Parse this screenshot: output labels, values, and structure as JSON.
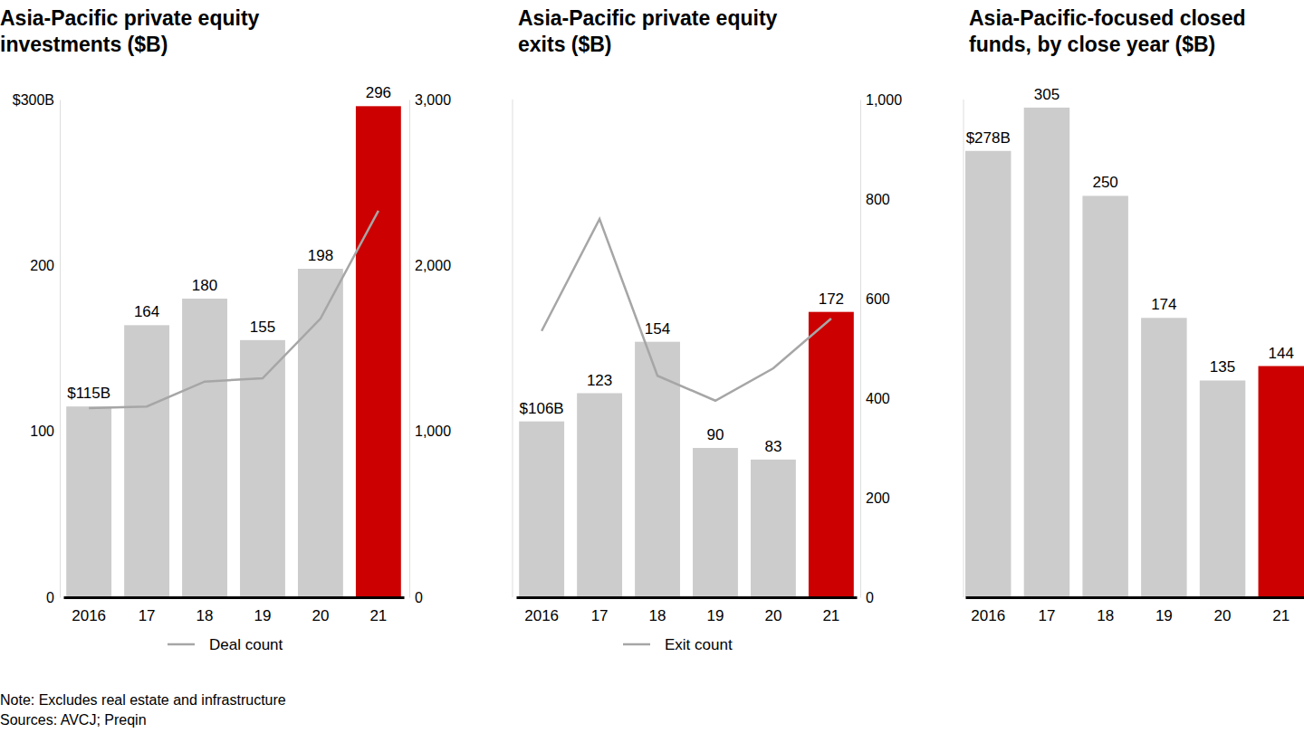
{
  "chart_data": [
    {
      "type": "bar",
      "title": [
        "Asia-Pacific private equity",
        "investments ($B)"
      ],
      "categories": [
        "2016",
        "17",
        "18",
        "19",
        "20",
        "21"
      ],
      "series": [
        {
          "type": "bar",
          "colors": [
            "#cccccc",
            "#cccccc",
            "#cccccc",
            "#cccccc",
            "#cccccc",
            "#cc0000"
          ],
          "values": [
            115,
            164,
            180,
            155,
            198,
            296
          ],
          "value_labels": [
            "$115B",
            "164",
            "180",
            "155",
            "198",
            "296"
          ]
        },
        {
          "name": "Deal count",
          "type": "line",
          "axis": "y2",
          "color": "#a6a6a6",
          "values": [
            1140,
            1150,
            1300,
            1320,
            1680,
            2330
          ]
        }
      ],
      "ylim": [
        0,
        300
      ],
      "yticks": [
        0,
        100,
        200,
        {
          "value": 300,
          "label": "$300B"
        }
      ],
      "y2lim": [
        0,
        3000
      ],
      "y2ticks": [
        0,
        {
          "value": 1000,
          "label": "1,000"
        },
        {
          "value": 2000,
          "label": "2,000"
        },
        {
          "value": 3000,
          "label": "3,000"
        }
      ],
      "data_labels": true,
      "legend": "bottom"
    },
    {
      "type": "bar",
      "title": [
        "Asia-Pacific private equity",
        "exits ($B)"
      ],
      "categories": [
        "2016",
        "17",
        "18",
        "19",
        "20",
        "21"
      ],
      "series": [
        {
          "type": "bar",
          "colors": [
            "#cccccc",
            "#cccccc",
            "#cccccc",
            "#cccccc",
            "#cccccc",
            "#cc0000"
          ],
          "values": [
            106,
            123,
            154,
            90,
            83,
            172
          ],
          "value_labels": [
            "$106B",
            "123",
            "154",
            "90",
            "83",
            "172"
          ]
        },
        {
          "name": "Exit count",
          "type": "line",
          "axis": "y2",
          "color": "#a6a6a6",
          "values": [
            535,
            760,
            445,
            395,
            460,
            560
          ]
        }
      ],
      "ylim": [
        0,
        300
      ],
      "y2lim": [
        0,
        1000
      ],
      "y2ticks": [
        0,
        200,
        400,
        600,
        800,
        {
          "value": 1000,
          "label": "1,000"
        }
      ],
      "data_labels": true,
      "legend": "bottom"
    },
    {
      "type": "bar",
      "title": [
        "Asia-Pacific-focused closed",
        "funds, by close year ($B)"
      ],
      "categories": [
        "2016",
        "17",
        "18",
        "19",
        "20",
        "21"
      ],
      "series": [
        {
          "type": "bar",
          "colors": [
            "#cccccc",
            "#cccccc",
            "#cccccc",
            "#cccccc",
            "#cccccc",
            "#cc0000"
          ],
          "values": [
            278,
            305,
            250,
            174,
            135,
            144
          ],
          "value_labels": [
            "$278B",
            "305",
            "250",
            "174",
            "135",
            "144"
          ]
        }
      ],
      "ylim": [
        0,
        310
      ],
      "data_labels": true
    }
  ],
  "notes": [
    "Note: Excludes real estate and infrastructure",
    "Sources: AVCJ; Preqin"
  ]
}
